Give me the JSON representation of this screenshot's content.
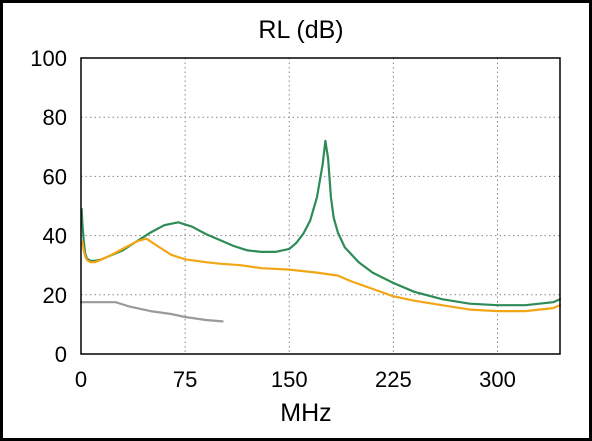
{
  "chart_data": {
    "type": "line",
    "title": "RL (dB)",
    "xlabel": "MHz",
    "ylabel": "",
    "xlim": [
      0,
      345
    ],
    "ylim": [
      0,
      100
    ],
    "xticks": [
      0,
      75,
      150,
      225,
      300
    ],
    "yticks": [
      0,
      20,
      40,
      60,
      80,
      100
    ],
    "grid": true,
    "legend": "none",
    "series": [
      {
        "color": "#2e8b57",
        "x": [
          0.5,
          1,
          2,
          3,
          4,
          5,
          7,
          10,
          15,
          20,
          30,
          40,
          50,
          60,
          70,
          80,
          90,
          100,
          110,
          120,
          130,
          140,
          150,
          155,
          160,
          165,
          170,
          174,
          176,
          178,
          180,
          182,
          185,
          190,
          200,
          210,
          225,
          240,
          260,
          280,
          300,
          320,
          340,
          345
        ],
        "y": [
          49,
          44,
          38,
          34,
          32.5,
          32,
          31.5,
          31.5,
          32,
          33,
          35,
          38,
          41,
          43.5,
          44.5,
          43,
          40.5,
          38.5,
          36.5,
          35,
          34.5,
          34.5,
          35.5,
          37.5,
          40.5,
          45,
          53,
          64,
          72,
          66,
          53,
          46,
          41,
          36,
          31,
          27.5,
          24,
          21,
          18.5,
          17,
          16.5,
          16.5,
          17.5,
          18.5
        ]
      },
      {
        "color": "#f2a615",
        "x": [
          1,
          2,
          3,
          4,
          5,
          7,
          10,
          15,
          20,
          30,
          40,
          47,
          55,
          65,
          75,
          90,
          100,
          115,
          130,
          150,
          170,
          185,
          195,
          210,
          225,
          240,
          260,
          280,
          300,
          320,
          340,
          345
        ],
        "y": [
          38,
          35,
          33,
          32,
          31.5,
          31,
          31,
          32,
          33,
          35.5,
          38,
          39,
          36.5,
          33.5,
          32,
          31,
          30.5,
          30,
          29,
          28.5,
          27.5,
          26.5,
          24.5,
          22,
          19.5,
          18,
          16.5,
          15,
          14.5,
          14.5,
          15.5,
          16.5
        ]
      },
      {
        "color": "#9a9a9a",
        "x": [
          0,
          15,
          25,
          35,
          50,
          65,
          75,
          90,
          102
        ],
        "y": [
          17.5,
          17.5,
          17.5,
          16,
          14.5,
          13.5,
          12.5,
          11.5,
          11
        ]
      }
    ]
  }
}
